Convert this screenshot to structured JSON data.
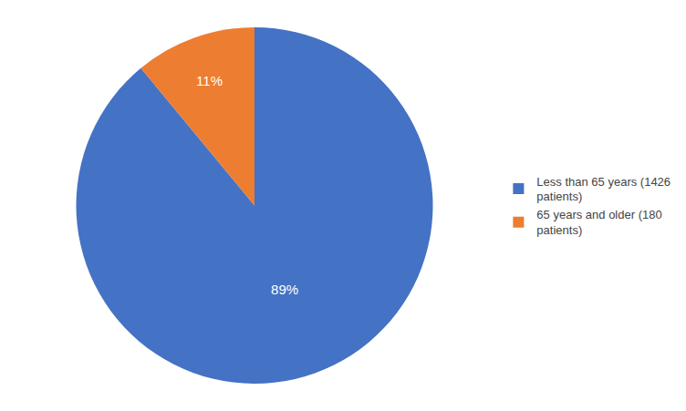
{
  "chart_data": {
    "type": "pie",
    "categories": [
      "Less than 65 years (1426\npatients)",
      "65 years and older (180\npatients)"
    ],
    "values": [
      89,
      11
    ],
    "value_labels": [
      "89%",
      "11%"
    ],
    "colors": [
      "#4472C4",
      "#ED7D31"
    ],
    "data_labels": true,
    "legend": "right"
  }
}
